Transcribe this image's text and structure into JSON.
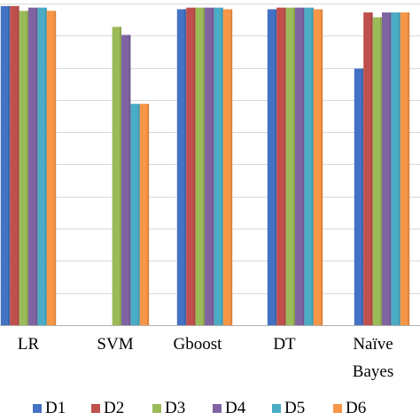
{
  "chart_data": {
    "type": "bar",
    "categories": [
      "LR",
      "SVM",
      "Gboost",
      "DT",
      "Naïve\nBayes"
    ],
    "category_labels": [
      [
        "LR"
      ],
      [
        "SVM"
      ],
      [
        "Gboost"
      ],
      [
        "DT"
      ],
      [
        "Naïve",
        "Bayes"
      ]
    ],
    "series": [
      {
        "name": "D1",
        "color": "#4472C4",
        "values": [
          99.5,
          null,
          98.5,
          98.5,
          80.0
        ]
      },
      {
        "name": "D2",
        "color": "#C0504D",
        "values": [
          99.5,
          null,
          99.0,
          99.0,
          97.5
        ]
      },
      {
        "name": "D3",
        "color": "#9BBB59",
        "values": [
          98.0,
          93.0,
          99.0,
          99.0,
          96.0
        ]
      },
      {
        "name": "D4",
        "color": "#8064A2",
        "values": [
          99.0,
          90.5,
          99.0,
          99.0,
          97.5
        ]
      },
      {
        "name": "D5",
        "color": "#4BACC6",
        "values": [
          99.0,
          69.0,
          99.0,
          99.0,
          97.5
        ]
      },
      {
        "name": "D6",
        "color": "#F79646",
        "values": [
          98.0,
          69.0,
          98.5,
          98.5,
          97.5
        ]
      }
    ],
    "ylim": [
      0,
      100
    ],
    "gridlines": true,
    "legend_position": "bottom"
  }
}
